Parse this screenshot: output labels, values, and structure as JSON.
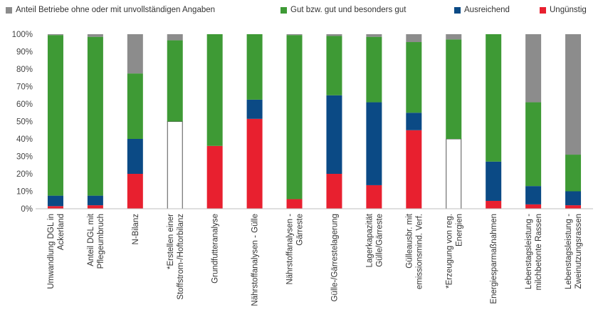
{
  "chart_data": {
    "type": "bar",
    "stacked": true,
    "legend_placement": "top",
    "grid": false,
    "ylim": [
      0,
      100
    ],
    "y_ticks": [
      "0%",
      "10%",
      "20%",
      "30%",
      "40%",
      "50%",
      "60%",
      "70%",
      "80%",
      "90%",
      "100%"
    ],
    "categories": [
      [
        "Umwandlung DGL in",
        "Ackerland"
      ],
      [
        "Anteil DGL mit",
        "Pflegeumbruch"
      ],
      [
        "N-Bilanz"
      ],
      [
        "*Erstellen einer",
        "Stoffstrom-/Hoftorbilanz"
      ],
      [
        "Grundfutteranalyse"
      ],
      [
        "Nährstoffanalysen - Gülle"
      ],
      [
        "Nährstoffanalysen -",
        "Gärreste"
      ],
      [
        "Gülle-/Gärrestelagerung"
      ],
      [
        "Lagerkapazität",
        "Gülle/Gärreste"
      ],
      [
        "Gülleausbr. mit",
        "emissionsmind. Verf."
      ],
      [
        "*Erzeugung von reg.",
        "Energien"
      ],
      [
        "Energiesparmaßnahmen"
      ],
      [
        "Lebenstagsleistung -",
        "milchbetonte Rassen"
      ],
      [
        "Lebenstagsleistung -",
        "Zweinutzungsrassen"
      ]
    ],
    "series": [
      {
        "name": "Ungünstig",
        "color": "#e8202f",
        "values": [
          1.5,
          2,
          20,
          0,
          36,
          51.5,
          5.5,
          20,
          13.5,
          45,
          0,
          4.5,
          2.5,
          2
        ]
      },
      {
        "name": "Ausreichend",
        "color": "#0b4a85",
        "values": [
          6,
          5.5,
          20,
          0,
          0,
          11,
          0,
          45,
          47.5,
          10,
          0,
          22.5,
          10.5,
          8
        ]
      },
      {
        "name": "Gut bzw. gut und besonders gut",
        "color": "#3e9a35",
        "values": [
          92,
          91,
          37.5,
          46.5,
          64,
          37.5,
          94,
          34,
          37.5,
          40.5,
          57,
          73,
          48,
          21
        ]
      },
      {
        "name": "Anteil Betriebe ohne oder mit unvollständigen Angaben",
        "color": "#8c8c8c",
        "values": [
          0.5,
          1.5,
          22.5,
          3.5,
          0,
          0,
          0.5,
          1,
          1.5,
          4.5,
          3,
          0,
          39,
          69
        ]
      }
    ],
    "blank_segment": {
      "color": "#ffffff",
      "values": [
        0,
        0,
        0,
        50,
        0,
        0,
        0,
        0,
        0,
        0,
        40,
        0,
        0,
        0
      ]
    }
  }
}
